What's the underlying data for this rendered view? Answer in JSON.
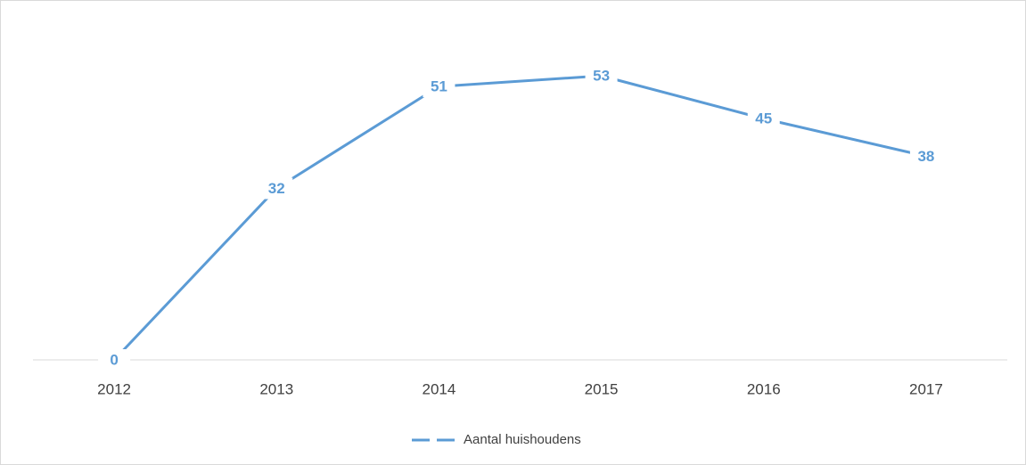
{
  "chart_data": {
    "type": "line",
    "categories": [
      "2012",
      "2013",
      "2014",
      "2015",
      "2016",
      "2017"
    ],
    "series": [
      {
        "name": "Aantal huishoudens",
        "color": "#5b9bd5",
        "values": [
          0,
          32,
          51,
          53,
          45,
          38
        ]
      }
    ],
    "ylim": [
      0,
      60
    ],
    "grid": false,
    "legend": "bottom"
  }
}
